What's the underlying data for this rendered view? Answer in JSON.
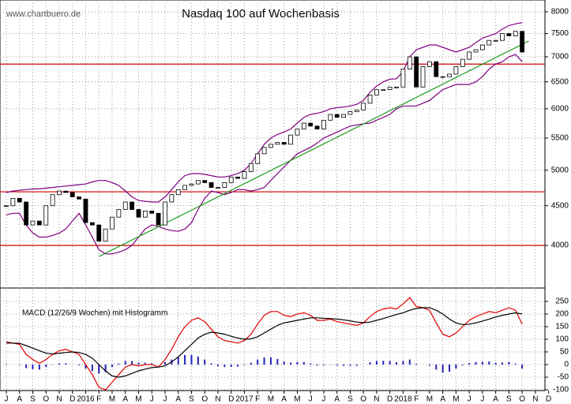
{
  "chart_data": [
    {
      "type": "candlestick",
      "title": "Nasdaq 100 auf Wochenbasis",
      "watermark": "www.chartbuero.de",
      "categories": [
        "J",
        null,
        "A",
        null,
        "S",
        null,
        "O",
        null,
        "N",
        null,
        "D",
        null,
        "2016",
        null,
        "F",
        null,
        "M",
        null,
        "A",
        null,
        "M",
        null,
        "J",
        null,
        "J",
        null,
        "A",
        null,
        "S",
        null,
        "O",
        null,
        "N",
        null,
        "D",
        null,
        "2017",
        null,
        "F",
        null,
        "M",
        null,
        "A",
        null,
        "M",
        null,
        "J",
        null,
        "J",
        null,
        "A",
        null,
        "S",
        null,
        "O",
        null,
        "N",
        null,
        "D",
        null,
        "2018",
        null,
        "F",
        null,
        "M",
        null,
        "A",
        null,
        "M",
        null,
        "J",
        null,
        "J",
        null,
        "A",
        null,
        "S",
        null,
        "O",
        null,
        "N",
        null,
        "D",
        null
      ],
      "values": [
        4500,
        4600,
        4550,
        4250,
        4300,
        4250,
        4500,
        4650,
        4700,
        4680,
        4620,
        4590,
        4280,
        4250,
        4050,
        4200,
        4350,
        4450,
        4550,
        4450,
        4350,
        4430,
        4400,
        4250,
        4550,
        4650,
        4720,
        4780,
        4800,
        4850,
        4820,
        4750,
        4750,
        4820,
        4900,
        4880,
        4980,
        5100,
        5250,
        5350,
        5400,
        5430,
        5400,
        5550,
        5650,
        5750,
        5700,
        5650,
        5800,
        5900,
        5850,
        5900,
        5950,
        5980,
        6100,
        6250,
        6350,
        6350,
        6400,
        6400,
        6750,
        7000,
        6400,
        6800,
        6900,
        6600,
        6600,
        6650,
        6800,
        6950,
        7100,
        7150,
        7250,
        7350,
        7350,
        7500,
        7450,
        7550,
        7100,
        null,
        null,
        null,
        null,
        null
      ],
      "upper_band": [
        4680,
        4700,
        4710,
        4720,
        4730,
        4730,
        4740,
        4750,
        4760,
        4770,
        4780,
        4790,
        4800,
        4830,
        4850,
        4850,
        4820,
        4780,
        4700,
        4620,
        4570,
        4560,
        4550,
        4550,
        4620,
        4720,
        4830,
        4920,
        4950,
        4950,
        4940,
        4920,
        4900,
        4900,
        4920,
        4950,
        5000,
        5100,
        5250,
        5400,
        5500,
        5560,
        5600,
        5650,
        5750,
        5850,
        5900,
        5920,
        5950,
        6000,
        6020,
        6030,
        6050,
        6080,
        6150,
        6300,
        6420,
        6500,
        6550,
        6560,
        6700,
        7000,
        7150,
        7200,
        7250,
        7250,
        7200,
        7150,
        7100,
        7150,
        7200,
        7300,
        7400,
        7450,
        7500,
        7600,
        7680,
        7720,
        7750,
        null,
        null,
        null,
        null,
        null
      ],
      "lower_band": [
        4380,
        4400,
        4400,
        4250,
        4150,
        4100,
        4100,
        4120,
        4150,
        4200,
        4300,
        4400,
        4250,
        4100,
        3950,
        3900,
        3900,
        3920,
        3950,
        4000,
        4100,
        4200,
        4250,
        4230,
        4200,
        4180,
        4170,
        4200,
        4280,
        4450,
        4600,
        4700,
        4680,
        4650,
        4680,
        4720,
        4720,
        4700,
        4720,
        4750,
        4850,
        4950,
        5050,
        5150,
        5250,
        5300,
        5350,
        5420,
        5500,
        5550,
        5600,
        5650,
        5700,
        5720,
        5740,
        5750,
        5800,
        5850,
        5900,
        6000,
        6050,
        6050,
        6050,
        6100,
        6150,
        6250,
        6350,
        6400,
        6450,
        6450,
        6450,
        6500,
        6600,
        6750,
        6850,
        6900,
        7000,
        7050,
        6900,
        null,
        null,
        null,
        null,
        null
      ],
      "trendline": [
        null,
        null,
        null,
        null,
        null,
        null,
        null,
        null,
        null,
        null,
        null,
        null,
        null,
        null,
        3870,
        3908,
        3947,
        3986,
        4025,
        4065,
        4105,
        4146,
        4187,
        4228,
        4270,
        4312,
        4355,
        4398,
        4441,
        4485,
        4529,
        4574,
        4619,
        4665,
        4711,
        4758,
        4805,
        4852,
        4900,
        4949,
        4998,
        5047,
        5097,
        5147,
        5198,
        5250,
        5302,
        5354,
        5407,
        5460,
        5514,
        5569,
        5624,
        5680,
        5736,
        5793,
        5850,
        5908,
        5967,
        6026,
        6085,
        6145,
        6206,
        6268,
        6330,
        6392,
        6455,
        6519,
        6584,
        6649,
        6715,
        6781,
        6848,
        6916,
        6985,
        7054,
        7124,
        7194,
        7265,
        7337,
        null,
        null,
        null,
        null
      ],
      "hlines": [
        6850,
        4690,
        4000
      ],
      "band_color": "#800080",
      "trend_color": "#1a9a1a",
      "hline_color": "#cc0000",
      "log_scale": true,
      "grid": true,
      "ylim": [
        3525,
        8286
      ],
      "yticks": [
        4000,
        4500,
        5000,
        5500,
        6000,
        6500,
        7000,
        7500,
        8000
      ]
    },
    {
      "type": "macd",
      "label": "MACD (12/26/9 Wochen) mit Histogramm",
      "series": [
        {
          "color": "#e00000",
          "values": [
            90,
            85,
            80,
            40,
            20,
            5,
            20,
            40,
            55,
            60,
            50,
            40,
            0,
            -40,
            -90,
            -100,
            -70,
            -40,
            -10,
            0,
            -5,
            0,
            0,
            -10,
            20,
            60,
            110,
            150,
            175,
            185,
            170,
            140,
            110,
            95,
            90,
            85,
            95,
            120,
            160,
            195,
            210,
            210,
            195,
            190,
            200,
            205,
            195,
            175,
            175,
            180,
            170,
            165,
            160,
            155,
            165,
            190,
            210,
            220,
            225,
            220,
            240,
            265,
            230,
            225,
            215,
            165,
            120,
            110,
            125,
            150,
            175,
            190,
            200,
            210,
            205,
            215,
            225,
            215,
            160,
            null,
            null,
            null,
            null,
            null
          ]
        },
        {
          "color": "#000000",
          "values": [
            85,
            85,
            84,
            75,
            65,
            55,
            45,
            42,
            45,
            48,
            50,
            48,
            40,
            25,
            0,
            -25,
            -45,
            -50,
            -45,
            -35,
            -25,
            -18,
            -12,
            -10,
            -5,
            10,
            30,
            55,
            80,
            105,
            120,
            128,
            125,
            120,
            112,
            105,
            100,
            102,
            110,
            125,
            140,
            155,
            165,
            170,
            175,
            180,
            185,
            185,
            183,
            182,
            180,
            177,
            173,
            168,
            166,
            168,
            175,
            182,
            190,
            198,
            205,
            215,
            222,
            225,
            225,
            215,
            200,
            180,
            165,
            158,
            160,
            165,
            172,
            180,
            188,
            195,
            200,
            205,
            200,
            null,
            null,
            null,
            null,
            null
          ]
        }
      ],
      "histogram": {
        "color": "#2222bb",
        "values": [
          2,
          0,
          -2,
          -14,
          -18,
          -20,
          -10,
          -1,
          4,
          5,
          0,
          -3,
          -16,
          -26,
          -36,
          -30,
          -10,
          4,
          14,
          14,
          8,
          7,
          5,
          0,
          10,
          20,
          32,
          38,
          38,
          32,
          20,
          5,
          -6,
          -10,
          -9,
          -8,
          -2,
          7,
          20,
          28,
          28,
          22,
          12,
          8,
          10,
          10,
          4,
          -4,
          -3,
          -1,
          -4,
          -5,
          -5,
          -5,
          0,
          9,
          14,
          15,
          14,
          9,
          14,
          20,
          3,
          0,
          -4,
          -20,
          -32,
          -28,
          -16,
          -3,
          6,
          10,
          11,
          12,
          7,
          8,
          10,
          4,
          -16,
          null,
          null,
          null,
          null,
          null
        ]
      },
      "ylim": [
        -103,
        303
      ],
      "yticks": [
        -100,
        -50,
        0,
        50,
        100,
        150,
        200,
        250
      ],
      "grid": true
    }
  ]
}
